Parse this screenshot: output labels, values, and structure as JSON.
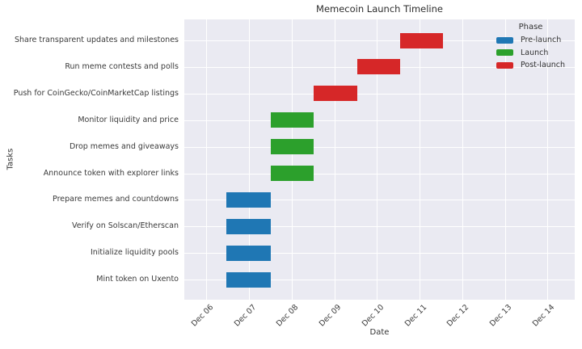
{
  "chart_data": {
    "type": "bar",
    "subtype": "gantt-timeline",
    "title": "Memecoin Launch Timeline",
    "xlabel": "Date",
    "ylabel": "Tasks",
    "grid": true,
    "legend_position": "upper-right",
    "xlim": [
      5.48,
      14.64
    ],
    "x_ticks": [
      {
        "value": 6,
        "label": "Dec 06"
      },
      {
        "value": 7,
        "label": "Dec 07"
      },
      {
        "value": 8,
        "label": "Dec 08"
      },
      {
        "value": 9,
        "label": "Dec 09"
      },
      {
        "value": 10,
        "label": "Dec 10"
      },
      {
        "value": 11,
        "label": "Dec 11"
      },
      {
        "value": 12,
        "label": "Dec 12"
      },
      {
        "value": 13,
        "label": "Dec 13"
      },
      {
        "value": 14,
        "label": "Dec 14"
      }
    ],
    "legend": {
      "title": "Phase",
      "entries": [
        {
          "label": "Pre-launch",
          "color": "#1f77b4"
        },
        {
          "label": "Launch",
          "color": "#2ca02c"
        },
        {
          "label": "Post-launch",
          "color": "#d62728"
        }
      ]
    },
    "phase_colors": {
      "Pre-launch": "#1f77b4",
      "Launch": "#2ca02c",
      "Post-launch": "#d62728"
    },
    "tasks": [
      {
        "label": "Share transparent updates and milestones",
        "phase": "Post-launch",
        "start_day": 10.54,
        "end_day": 11.55
      },
      {
        "label": "Run meme contests and polls",
        "phase": "Post-launch",
        "start_day": 9.53,
        "end_day": 10.54
      },
      {
        "label": "Push for CoinGecko/CoinMarketCap listings",
        "phase": "Post-launch",
        "start_day": 8.52,
        "end_day": 9.53
      },
      {
        "label": "Monitor liquidity and price",
        "phase": "Launch",
        "start_day": 7.5,
        "end_day": 8.52
      },
      {
        "label": "Drop memes and giveaways",
        "phase": "Launch",
        "start_day": 7.5,
        "end_day": 8.52
      },
      {
        "label": "Announce token with explorer links",
        "phase": "Launch",
        "start_day": 7.5,
        "end_day": 8.52
      },
      {
        "label": "Prepare memes and countdowns",
        "phase": "Pre-launch",
        "start_day": 6.46,
        "end_day": 7.5
      },
      {
        "label": "Verify on Solscan/Etherscan",
        "phase": "Pre-launch",
        "start_day": 6.46,
        "end_day": 7.5
      },
      {
        "label": "Initialize liquidity pools",
        "phase": "Pre-launch",
        "start_day": 6.46,
        "end_day": 7.5
      },
      {
        "label": "Mint token on Uxento",
        "phase": "Pre-launch",
        "start_day": 6.46,
        "end_day": 7.5
      }
    ],
    "colors": {
      "plot_bg": "#eaeaf2",
      "grid": "#ffffff",
      "text": "#333333"
    }
  }
}
